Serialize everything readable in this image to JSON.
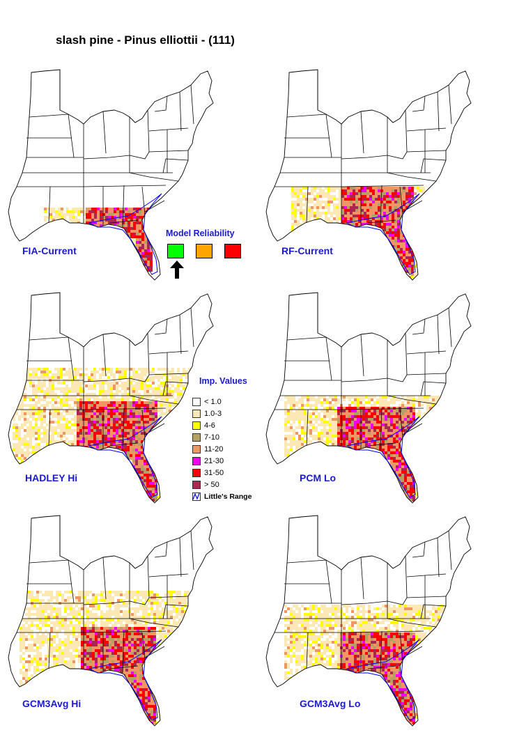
{
  "title": "slash pine - Pinus elliottii - (111)",
  "maps": [
    {
      "label": "FIA-Current"
    },
    {
      "label": "RF-Current"
    },
    {
      "label": "HADLEY Hi"
    },
    {
      "label": "PCM Lo"
    },
    {
      "label": "GCM3Avg Hi"
    },
    {
      "label": "GCM3Avg Lo"
    }
  ],
  "reliability": {
    "title": "Model Reliability",
    "colors": [
      "#00ff00",
      "#ffa500",
      "#ff0000"
    ],
    "selected_index": 0,
    "arrow_icon": "up-arrow-icon"
  },
  "legend": {
    "title": "Imp. Values",
    "items": [
      {
        "label": "< 1.0",
        "color": "#ffffff"
      },
      {
        "label": "1.0-3",
        "color": "#fbe8b4"
      },
      {
        "label": "4-6",
        "color": "#ffff00"
      },
      {
        "label": "7-10",
        "color": "#b4a064"
      },
      {
        "label": "11-20",
        "color": "#f09664"
      },
      {
        "label": "21-30",
        "color": "#f000f0"
      },
      {
        "label": "31-50",
        "color": "#ff0000"
      },
      {
        "label": "> 50",
        "color": "#aa2850"
      }
    ],
    "range_label": "Little's Range",
    "range_color": "#0000ff"
  }
}
